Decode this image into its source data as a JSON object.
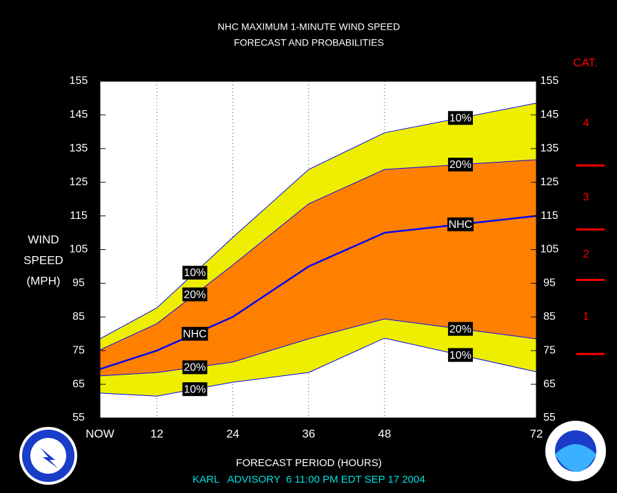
{
  "chart_data": {
    "type": "band",
    "title": [
      "NHC MAXIMUM 1-MINUTE WIND SPEED",
      "FORECAST AND PROBABILITIES"
    ],
    "ylabel": [
      "WIND",
      "SPEED",
      "(MPH)"
    ],
    "xlabel": "FORECAST PERIOD (HOURS)",
    "footer": "KARL   ADVISORY  6 11:00 PM EDT SEP 17 2004",
    "x": [
      3,
      12,
      24,
      36,
      48,
      72
    ],
    "xlim": [
      3,
      72
    ],
    "xticks": [
      {
        "value": 3,
        "label": "NOW"
      },
      12,
      24,
      36,
      48,
      72
    ],
    "ylim": [
      55,
      155
    ],
    "yticks": [
      55,
      65,
      75,
      85,
      95,
      105,
      115,
      125,
      135,
      145,
      155
    ],
    "grid": true,
    "series": [
      {
        "name": "10%",
        "color": "#0000ff",
        "values": [
          78.5,
          87.7,
          108.6,
          128.8,
          139.7,
          148.5
        ]
      },
      {
        "name": "20%",
        "color": "#0000ff",
        "values": [
          75.2,
          83,
          100.4,
          118.6,
          128.8,
          131.7
        ]
      },
      {
        "name": "NHC",
        "color": "#0000ff",
        "values": [
          69.5,
          75,
          85,
          100,
          110,
          115
        ]
      },
      {
        "name": "20%",
        "color": "#0000ff",
        "values": [
          67.5,
          68.5,
          71.6,
          78.5,
          84.4,
          78.5
        ]
      },
      {
        "name": "10%",
        "color": "#0000ff",
        "values": [
          62.4,
          61.5,
          65.6,
          68.5,
          78.7,
          68.7
        ]
      }
    ],
    "outer_band_color": "#eeee00",
    "inner_band_color": "#ff8000",
    "category_scale": {
      "title": "CAT.",
      "labels": [
        "1",
        "2",
        "3",
        "4"
      ],
      "thresholds": [
        74,
        96,
        111,
        130
      ],
      "color": "#ff0000"
    },
    "footer_color": "#00e0e0"
  }
}
